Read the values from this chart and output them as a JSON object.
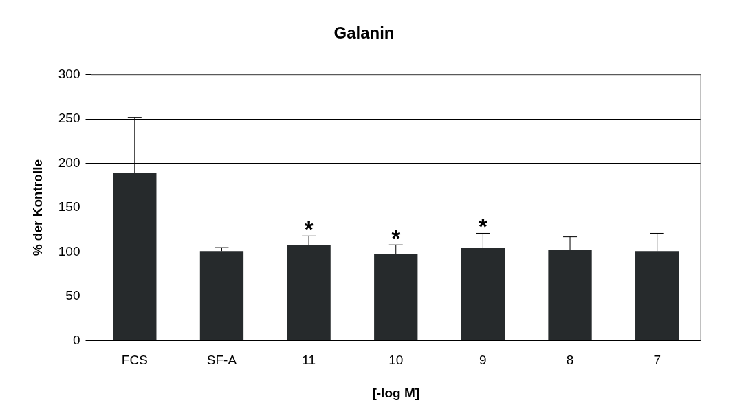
{
  "chart_data": {
    "type": "bar",
    "title": "Galanin",
    "xlabel": "[-log M]",
    "ylabel": "% der Kontrolle",
    "categories": [
      "FCS",
      "SF-A",
      "11",
      "10",
      "9",
      "8",
      "7"
    ],
    "values": [
      189,
      101,
      108,
      98,
      105,
      102,
      101
    ],
    "errors": [
      [
        189,
        252
      ],
      [
        101,
        105
      ],
      [
        108,
        118
      ],
      [
        98,
        108
      ],
      [
        105,
        121
      ],
      [
        102,
        117
      ],
      [
        101,
        121
      ]
    ],
    "color": "#262a2c",
    "ylim": [
      0,
      300
    ],
    "yticks": [
      0,
      50,
      100,
      150,
      200,
      250,
      300
    ],
    "grid": "y",
    "legend": false,
    "annotations": [
      {
        "text": "*",
        "x": "11",
        "y": 118
      },
      {
        "text": "*",
        "x": "10",
        "y": 108
      },
      {
        "text": "*",
        "x": "9",
        "y": 121
      }
    ]
  }
}
